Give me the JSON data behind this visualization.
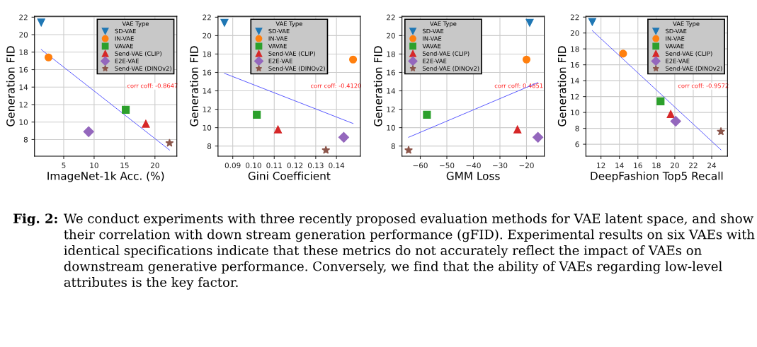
{
  "chart_data": [
    {
      "type": "scatter",
      "xlabel": "ImageNet-1k Acc. (%)",
      "ylabel": "Generation FID",
      "legend_title": "VAE Type",
      "legend": "top right",
      "grid": true,
      "xlim": [
        0.2,
        23.6
      ],
      "xticks": [
        5,
        10,
        15,
        20
      ],
      "ylim": [
        6.1,
        22.1
      ],
      "yticks": [
        8,
        10,
        12,
        14,
        16,
        18,
        20,
        22
      ],
      "series": [
        {
          "name": "SD-VAE",
          "color": "#1f77b4",
          "marker": "triangle_down",
          "x": [
            1.3
          ],
          "values": [
            21.4
          ]
        },
        {
          "name": "IN-VAE",
          "color": "#ff7f0e",
          "marker": "circle",
          "x": [
            2.5
          ],
          "values": [
            17.4
          ]
        },
        {
          "name": "VAVAE",
          "color": "#2ca02c",
          "marker": "square",
          "x": [
            15.2
          ],
          "values": [
            11.4
          ]
        },
        {
          "name": "Send-VAE (CLIP)",
          "color": "#d62728",
          "marker": "triangle",
          "x": [
            18.5
          ],
          "values": [
            9.8
          ]
        },
        {
          "name": "E2E-VAE",
          "color": "#9467bd",
          "marker": "diamond",
          "x": [
            9.1
          ],
          "values": [
            8.9
          ]
        },
        {
          "name": "Send-VAE (DINOv2)",
          "color": "#8c564b",
          "marker": "star",
          "x": [
            22.4
          ],
          "values": [
            7.6
          ]
        },
        {
          "type": "line",
          "color": "#5555ff",
          "x": [
            1.3,
            22.4
          ],
          "values": [
            18.3,
            6.8
          ]
        }
      ],
      "annotations": [
        "corr coff: -0.8647",
        "Fig. 2:",
        "We conduct experiments with three recently proposed evaluation methods for VAE latent space, and show their correlation with down stream generation performance (gFID). Experimental results on six VAEs with identical specifications indicate that these metrics do not accurately reflect the impact of VAEs on downstream generative performance. Conversely, we find that the ability of VAEs regarding low-level attributes is the key factor."
      ]
    },
    {
      "type": "scatter",
      "xlabel": "Gini Coefficient",
      "ylabel": "Generation FID",
      "legend_title": "VAE Type",
      "legend": "top center",
      "grid": true,
      "xlim": [
        0.0829,
        0.1515
      ],
      "xticks": [
        {
          "value": 0.09,
          "label": "0.09"
        },
        {
          "value": 0.1,
          "label": "0.10"
        },
        {
          "value": 0.11,
          "label": "0.11"
        },
        {
          "value": 0.12,
          "label": "0.12"
        },
        {
          "value": 0.13,
          "label": "0.13"
        },
        {
          "value": 0.14,
          "label": "0.14"
        }
      ],
      "ylim": [
        6.9,
        22.1
      ],
      "yticks": [
        8,
        10,
        12,
        14,
        16,
        18,
        20,
        22
      ],
      "series": [
        {
          "name": "SD-VAE",
          "color": "#1f77b4",
          "marker": "triangle_down",
          "x": [
            0.086
          ],
          "values": [
            21.4
          ]
        },
        {
          "name": "IN-VAE",
          "color": "#ff7f0e",
          "marker": "circle",
          "x": [
            0.148
          ],
          "values": [
            17.4
          ]
        },
        {
          "name": "VAVAE",
          "color": "#2ca02c",
          "marker": "square",
          "x": [
            0.1016
          ],
          "values": [
            11.4
          ]
        },
        {
          "name": "Send-VAE (CLIP)",
          "color": "#d62728",
          "marker": "triangle",
          "x": [
            0.1118
          ],
          "values": [
            9.8
          ]
        },
        {
          "name": "E2E-VAE",
          "color": "#9467bd",
          "marker": "diamond",
          "x": [
            0.1435
          ],
          "values": [
            8.95
          ]
        },
        {
          "name": "Send-VAE (DINOv2)",
          "color": "#8c564b",
          "marker": "star",
          "x": [
            0.1349
          ],
          "values": [
            7.55
          ]
        },
        {
          "type": "line",
          "color": "#5555ff",
          "x": [
            0.086,
            0.148
          ],
          "values": [
            15.9,
            10.45
          ]
        }
      ],
      "annotations": [
        "corr coff: -0.4120"
      ]
    },
    {
      "type": "scatter",
      "xlabel": "GMM Loss",
      "ylabel": "Generation FID",
      "legend_title": "VAE Type",
      "legend": "top left",
      "grid": true,
      "xlim": [
        -66.9,
        -13.3
      ],
      "xticks": [
        {
          "value": -60,
          "label": "−60"
        },
        {
          "value": -50,
          "label": "−50"
        },
        {
          "value": -40,
          "label": "−40"
        },
        {
          "value": -30,
          "label": "−30"
        },
        {
          "value": -20,
          "label": "−20"
        }
      ],
      "ylim": [
        6.9,
        22.1
      ],
      "yticks": [
        8,
        10,
        12,
        14,
        16,
        18,
        20,
        22
      ],
      "series": [
        {
          "name": "SD-VAE",
          "color": "#1f77b4",
          "marker": "triangle_down",
          "x": [
            -18.8
          ],
          "values": [
            21.4
          ]
        },
        {
          "name": "IN-VAE",
          "color": "#ff7f0e",
          "marker": "circle",
          "x": [
            -20.0
          ],
          "values": [
            17.4
          ]
        },
        {
          "name": "VAVAE",
          "color": "#2ca02c",
          "marker": "square",
          "x": [
            -57.5
          ],
          "values": [
            11.4
          ]
        },
        {
          "name": "Send-VAE (CLIP)",
          "color": "#d62728",
          "marker": "triangle",
          "x": [
            -23.4
          ],
          "values": [
            9.8
          ]
        },
        {
          "name": "E2E-VAE",
          "color": "#9467bd",
          "marker": "diamond",
          "x": [
            -15.7
          ],
          "values": [
            8.95
          ]
        },
        {
          "name": "Send-VAE (DINOv2)",
          "color": "#8c564b",
          "marker": "star",
          "x": [
            -64.4
          ],
          "values": [
            7.55
          ]
        },
        {
          "type": "line",
          "color": "#5555ff",
          "x": [
            -64.4,
            -15.7
          ],
          "values": [
            8.95,
            14.9
          ]
        }
      ],
      "annotations": [
        "corr coff: 0.4851"
      ]
    },
    {
      "type": "scatter",
      "xlabel": "DeepFashion Top5 Recall",
      "ylabel": "Generation FID",
      "legend_title": "VAE Type",
      "legend": "top right",
      "grid": true,
      "xlim": [
        10.37,
        25.71
      ],
      "xticks": [
        12,
        14,
        16,
        18,
        20,
        22,
        24
      ],
      "ylim": [
        4.5,
        22.1
      ],
      "yticks": [
        6,
        8,
        10,
        12,
        14,
        16,
        18,
        20,
        22
      ],
      "series": [
        {
          "name": "SD-VAE",
          "color": "#1f77b4",
          "marker": "triangle_down",
          "x": [
            11.06
          ],
          "values": [
            21.4
          ]
        },
        {
          "name": "IN-VAE",
          "color": "#ff7f0e",
          "marker": "circle",
          "x": [
            14.4
          ],
          "values": [
            17.4
          ]
        },
        {
          "name": "VAVAE",
          "color": "#2ca02c",
          "marker": "square",
          "x": [
            18.46
          ],
          "values": [
            11.4
          ]
        },
        {
          "name": "Send-VAE (CLIP)",
          "color": "#d62728",
          "marker": "triangle",
          "x": [
            19.56
          ],
          "values": [
            9.8
          ]
        },
        {
          "name": "E2E-VAE",
          "color": "#9467bd",
          "marker": "diamond",
          "x": [
            20.1
          ],
          "values": [
            8.9
          ]
        },
        {
          "name": "Send-VAE (DINOv2)",
          "color": "#8c564b",
          "marker": "star",
          "x": [
            25.0
          ],
          "values": [
            7.6
          ]
        },
        {
          "type": "line",
          "color": "#5555ff",
          "x": [
            11.06,
            25.0
          ],
          "values": [
            20.3,
            5.3
          ]
        }
      ],
      "annotations": [
        "corr coff: -0.9572"
      ]
    }
  ]
}
